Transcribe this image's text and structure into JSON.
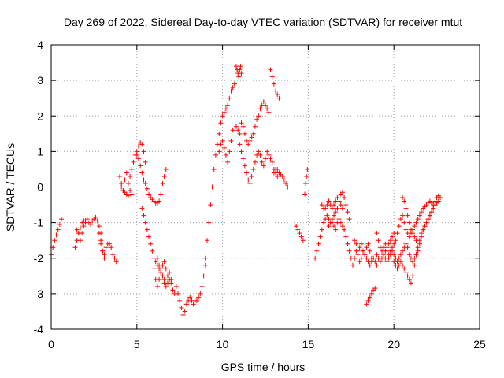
{
  "chart_data": {
    "type": "scatter",
    "title": "Day 269 of 2022, Sidereal Day-to-day VTEC variation (SDTVAR) for receiver mtut",
    "xlabel": "GPS time / hours",
    "ylabel": "SDTVAR / TECUs",
    "xlim": [
      0,
      25
    ],
    "ylim": [
      -4,
      4
    ],
    "xticks": [
      0,
      5,
      10,
      15,
      20,
      25
    ],
    "yticks": [
      -4,
      -3,
      -2,
      -1,
      0,
      1,
      2,
      3,
      4
    ],
    "xtick_labels": [
      "0",
      "5",
      "10",
      "15",
      "20",
      "25"
    ],
    "ytick_labels": [
      "-4",
      "-3",
      "-2",
      "-1",
      "0",
      "1",
      "2",
      "3",
      "4"
    ],
    "grid": true,
    "marker": "+",
    "marker_color": "#ff0000",
    "series": [
      {
        "name": "seg1",
        "x": [
          0.0,
          0.1,
          0.2,
          0.3,
          0.4,
          0.5,
          0.6
        ],
        "y": [
          -1.9,
          -1.7,
          -1.5,
          -1.35,
          -1.2,
          -1.05,
          -0.9
        ]
      },
      {
        "name": "seg2",
        "x": [
          1.4,
          1.5,
          1.6,
          1.7,
          1.8,
          1.9,
          2.0,
          2.1,
          2.2,
          2.3,
          2.4,
          2.5,
          2.6,
          2.7,
          2.8,
          2.9
        ],
        "y": [
          -1.7,
          -1.5,
          -1.3,
          -1.15,
          -1.0,
          -0.95,
          -0.95,
          -0.9,
          -1.0,
          -1.05,
          -0.95,
          -0.9,
          -0.85,
          -0.95,
          -1.1,
          -1.3
        ]
      },
      {
        "name": "seg3",
        "x": [
          1.5,
          1.6,
          1.7,
          1.8,
          1.9,
          2.0
        ],
        "y": [
          -1.2,
          -1.3,
          -1.5,
          -1.3,
          -1.1,
          -1.0
        ]
      },
      {
        "name": "seg4",
        "x": [
          2.9,
          3.0,
          3.1,
          3.2,
          3.3,
          3.4,
          3.5,
          3.6,
          3.7,
          3.8
        ],
        "y": [
          -1.6,
          -1.8,
          -1.9,
          -1.7,
          -1.6,
          -1.6,
          -1.7,
          -1.9,
          -2.0,
          -2.1
        ]
      },
      {
        "name": "seg5",
        "x": [
          2.8,
          2.9,
          3.0,
          3.1
        ],
        "y": [
          -1.3,
          -1.5,
          -1.8,
          -2.0
        ]
      },
      {
        "name": "seg6",
        "x": [
          4.0,
          4.1,
          4.2,
          4.3,
          4.4,
          4.5,
          4.6,
          4.7
        ],
        "y": [
          0.3,
          0.1,
          -0.1,
          0.2,
          0.4,
          0.1,
          -0.1,
          -0.2
        ]
      },
      {
        "name": "seg7",
        "x": [
          4.1,
          4.2,
          4.3,
          4.4,
          4.5
        ],
        "y": [
          0.0,
          -0.1,
          -0.15,
          -0.2,
          -0.25
        ]
      },
      {
        "name": "seg8",
        "x": [
          4.6,
          4.7,
          4.8,
          4.9,
          5.0,
          5.1,
          5.2,
          5.3,
          5.4,
          5.5
        ],
        "y": [
          0.3,
          0.5,
          0.7,
          0.9,
          1.0,
          1.15,
          1.25,
          1.2,
          1.0,
          0.7
        ]
      },
      {
        "name": "seg9",
        "x": [
          5.0,
          5.1,
          5.2,
          5.3,
          5.4,
          5.5,
          5.6,
          5.7,
          5.8,
          5.9,
          6.0,
          6.1,
          6.2,
          6.3,
          6.4,
          6.5,
          6.6,
          6.7
        ],
        "y": [
          0.9,
          0.8,
          0.6,
          0.4,
          0.2,
          0.1,
          -0.05,
          -0.2,
          -0.3,
          -0.35,
          -0.4,
          -0.45,
          -0.45,
          -0.4,
          -0.2,
          0.1,
          0.3,
          0.5
        ]
      },
      {
        "name": "seg10",
        "x": [
          5.3,
          5.4,
          5.5,
          5.6,
          5.7,
          5.8,
          5.9,
          6.0,
          6.1,
          6.2,
          6.3,
          6.4,
          6.5,
          6.6
        ],
        "y": [
          -0.6,
          -0.8,
          -1.0,
          -1.2,
          -1.4,
          -1.6,
          -1.8,
          -2.0,
          -2.1,
          -2.2,
          -2.3,
          -2.4,
          -2.5,
          -2.6
        ]
      },
      {
        "name": "seg11",
        "x": [
          6.0,
          6.1,
          6.2,
          6.3,
          6.4,
          6.5,
          6.6,
          6.7,
          6.8,
          6.9,
          7.0,
          7.1,
          7.2,
          7.3,
          7.4,
          7.5,
          7.6,
          7.7,
          7.8,
          7.9,
          8.0,
          8.1,
          8.2,
          8.3,
          8.4,
          8.5,
          8.6,
          8.7,
          8.8,
          8.9,
          9.0
        ],
        "y": [
          -2.3,
          -2.6,
          -2.8,
          -2.6,
          -2.3,
          -2.5,
          -2.7,
          -2.8,
          -2.7,
          -2.6,
          -2.7,
          -2.9,
          -3.0,
          -2.8,
          -3.0,
          -3.2,
          -3.4,
          -3.6,
          -3.5,
          -3.3,
          -3.2,
          -3.1,
          -3.2,
          -3.3,
          -3.2,
          -3.2,
          -3.1,
          -3.0,
          -2.8,
          -2.5,
          -2.2
        ]
      },
      {
        "name": "seg12",
        "x": [
          6.2,
          6.3,
          6.4,
          6.5,
          6.6,
          6.7,
          6.8,
          6.9,
          7.0
        ],
        "y": [
          -2.0,
          -2.2,
          -2.4,
          -2.2,
          -2.1,
          -2.3,
          -2.5,
          -2.4,
          -2.6
        ]
      },
      {
        "name": "seg13",
        "x": [
          9.0,
          9.1,
          9.2,
          9.3,
          9.4,
          9.5,
          9.6,
          9.7,
          9.8,
          9.9,
          10.0,
          10.1,
          10.2,
          10.3,
          10.4,
          10.5,
          10.6,
          10.7
        ],
        "y": [
          -2.0,
          -1.5,
          -1.0,
          -0.5,
          0.0,
          0.5,
          0.9,
          1.2,
          1.5,
          1.8,
          2.0,
          2.1,
          2.2,
          2.3,
          2.5,
          2.7,
          2.8,
          2.9
        ]
      },
      {
        "name": "seg14",
        "x": [
          9.8,
          9.9,
          10.0,
          10.1,
          10.2,
          10.3,
          10.4,
          10.5,
          10.6
        ],
        "y": [
          1.0,
          1.2,
          1.3,
          1.1,
          0.9,
          0.7,
          1.0,
          1.3,
          1.6
        ]
      },
      {
        "name": "seg15",
        "x": [
          10.8,
          10.85,
          10.9,
          10.95,
          11.0,
          11.05,
          11.1
        ],
        "y": [
          3.4,
          3.3,
          3.2,
          3.1,
          3.3,
          3.4,
          3.2
        ]
      },
      {
        "name": "seg16",
        "x": [
          10.8,
          10.9,
          11.0,
          11.1,
          11.2,
          11.3,
          11.4,
          11.5,
          11.6,
          11.7,
          11.8,
          11.9,
          12.0,
          12.1,
          12.2,
          12.3,
          12.4,
          12.5,
          12.6,
          12.7
        ],
        "y": [
          1.7,
          1.6,
          1.5,
          1.8,
          1.7,
          1.5,
          1.3,
          1.2,
          1.3,
          1.4,
          1.5,
          1.7,
          1.9,
          2.0,
          2.2,
          2.3,
          2.4,
          2.3,
          2.2,
          2.1
        ]
      },
      {
        "name": "seg17",
        "x": [
          11.0,
          11.1,
          11.2,
          11.3,
          11.4,
          11.5,
          11.6,
          11.7,
          11.8,
          11.9,
          12.0,
          12.1,
          12.2,
          12.3,
          12.4
        ],
        "y": [
          1.2,
          1.0,
          0.8,
          0.6,
          0.4,
          0.2,
          0.1,
          0.3,
          0.5,
          0.7,
          0.9,
          1.0,
          0.9,
          0.7,
          0.6
        ]
      },
      {
        "name": "seg18",
        "x": [
          12.5,
          12.6,
          12.7,
          12.8,
          12.9,
          13.0,
          13.1,
          13.2
        ],
        "y": [
          0.8,
          1.0,
          0.9,
          0.8,
          0.7,
          0.5,
          0.4,
          0.3
        ]
      },
      {
        "name": "seg19",
        "x": [
          12.8,
          12.9,
          13.0,
          13.1,
          13.2,
          13.3
        ],
        "y": [
          3.3,
          3.1,
          2.9,
          2.7,
          2.6,
          2.5
        ]
      },
      {
        "name": "seg20",
        "x": [
          13.0,
          13.1,
          13.2,
          13.3,
          13.4,
          13.5,
          13.6,
          13.7,
          13.8
        ],
        "y": [
          0.4,
          0.5,
          0.5,
          0.4,
          0.35,
          0.3,
          0.2,
          0.1,
          0.0
        ]
      },
      {
        "name": "seg21",
        "x": [
          14.3,
          14.4,
          14.5,
          14.6,
          14.7
        ],
        "y": [
          -1.1,
          -1.2,
          -1.3,
          -1.4,
          -1.5
        ]
      },
      {
        "name": "seg22",
        "x": [
          14.8,
          14.85,
          14.9,
          14.95
        ],
        "y": [
          -0.2,
          0.1,
          0.3,
          0.5
        ]
      },
      {
        "name": "seg23",
        "x": [
          15.4,
          15.5,
          15.6,
          15.7,
          15.8,
          15.9,
          16.0,
          16.1,
          16.2,
          16.3,
          16.4,
          16.5,
          16.6,
          16.7,
          16.8,
          16.9,
          17.0,
          17.1,
          17.2,
          17.3,
          17.4
        ],
        "y": [
          -2.0,
          -1.8,
          -1.6,
          -1.4,
          -1.2,
          -1.0,
          -0.9,
          -0.8,
          -0.9,
          -1.0,
          -0.9,
          -0.8,
          -0.7,
          -0.6,
          -0.4,
          -0.2,
          -0.15,
          -0.3,
          -0.5,
          -0.7,
          -0.9
        ]
      },
      {
        "name": "seg24",
        "x": [
          15.8,
          15.9,
          16.0,
          16.1,
          16.2,
          16.3,
          16.4,
          16.5,
          16.6,
          16.7,
          16.8,
          16.9,
          17.0
        ],
        "y": [
          -0.5,
          -0.6,
          -0.6,
          -0.5,
          -0.4,
          -0.5,
          -0.6,
          -0.5,
          -0.4,
          -0.3,
          -0.4,
          -0.5,
          -0.6
        ]
      },
      {
        "name": "seg25",
        "x": [
          16.2,
          16.3,
          16.4,
          16.5,
          16.6,
          16.7,
          16.8,
          16.9,
          17.0,
          17.1,
          17.2,
          17.3,
          17.4,
          17.5,
          17.6,
          17.7,
          17.8,
          17.9,
          18.0,
          18.1,
          18.2,
          18.3,
          18.4,
          18.5,
          18.6,
          18.7,
          18.8,
          18.9,
          19.0
        ],
        "y": [
          -1.1,
          -1.0,
          -1.0,
          -1.1,
          -1.2,
          -1.0,
          -0.9,
          -1.0,
          -1.1,
          -1.2,
          -1.4,
          -1.6,
          -1.8,
          -2.0,
          -2.2,
          -2.0,
          -1.8,
          -1.9,
          -2.1,
          -2.0,
          -1.8,
          -1.9,
          -2.0,
          -2.1,
          -2.2,
          -2.1,
          -2.0,
          -2.1,
          -2.2
        ]
      },
      {
        "name": "seg26",
        "x": [
          17.7,
          17.8,
          17.9,
          18.0,
          18.1,
          18.2,
          18.3,
          18.4,
          18.5,
          18.6,
          18.7
        ],
        "y": [
          -1.5,
          -1.6,
          -1.8,
          -1.7,
          -1.6,
          -1.8,
          -1.9,
          -1.7,
          -1.6,
          -1.8,
          -2.0
        ]
      },
      {
        "name": "seg27",
        "x": [
          18.4,
          18.5,
          18.6,
          18.7,
          18.8,
          18.9
        ],
        "y": [
          -3.3,
          -3.2,
          -3.1,
          -3.0,
          -2.9,
          -2.85
        ]
      },
      {
        "name": "seg28",
        "x": [
          19.0,
          19.1,
          19.2,
          19.3,
          19.4,
          19.5,
          19.6,
          19.7,
          19.8,
          19.9,
          20.0,
          20.1,
          20.2,
          20.3,
          20.4,
          20.5,
          20.6,
          20.7,
          20.8,
          20.9,
          21.0,
          21.1,
          21.2,
          21.3,
          21.4,
          21.5,
          21.6,
          21.7,
          21.8,
          21.9,
          22.0,
          22.1,
          22.2,
          22.3,
          22.4,
          22.5,
          22.6,
          22.7
        ],
        "y": [
          -1.3,
          -1.5,
          -1.7,
          -1.8,
          -1.7,
          -1.6,
          -1.8,
          -1.9,
          -1.8,
          -1.7,
          -1.6,
          -1.5,
          -1.3,
          -1.1,
          -0.9,
          -0.8,
          -1.0,
          -1.2,
          -1.3,
          -1.4,
          -1.3,
          -1.2,
          -1.1,
          -1.0,
          -0.9,
          -0.8,
          -0.7,
          -0.6,
          -0.55,
          -0.5,
          -0.45,
          -0.4,
          -0.45,
          -0.5,
          -0.4,
          -0.3,
          -0.25,
          -0.3
        ]
      },
      {
        "name": "seg29",
        "x": [
          19.5,
          19.6,
          19.7,
          19.8,
          19.9,
          20.0,
          20.1,
          20.2,
          20.3,
          20.4,
          20.5,
          20.6,
          20.7,
          20.8,
          20.9,
          21.0,
          21.1,
          21.2,
          21.3,
          21.4,
          21.5,
          21.6,
          21.7,
          21.8,
          21.9,
          22.0,
          22.1,
          22.2,
          22.3,
          22.4,
          22.5,
          22.6
        ],
        "y": [
          -2.0,
          -2.1,
          -2.0,
          -1.9,
          -1.8,
          -1.9,
          -2.0,
          -2.1,
          -2.0,
          -1.9,
          -1.8,
          -1.7,
          -1.6,
          -1.7,
          -1.9,
          -2.0,
          -2.1,
          -2.0,
          -1.9,
          -1.8,
          -1.6,
          -1.4,
          -1.2,
          -1.1,
          -1.0,
          -0.9,
          -0.8,
          -0.7,
          -0.6,
          -0.5,
          -0.45,
          -0.4
        ]
      },
      {
        "name": "seg30",
        "x": [
          20.0,
          20.1,
          20.2,
          20.3,
          20.4,
          20.5,
          20.6,
          20.7,
          20.8,
          20.9,
          21.0,
          21.1,
          21.2,
          21.3,
          21.4,
          21.5,
          21.6,
          21.7,
          21.8,
          21.9,
          22.0,
          22.1,
          22.2,
          22.3,
          22.4
        ],
        "y": [
          -2.1,
          -2.2,
          -2.3,
          -2.2,
          -2.1,
          -2.2,
          -2.3,
          -2.4,
          -2.5,
          -2.6,
          -2.7,
          -2.5,
          -2.2,
          -1.9,
          -1.7,
          -1.5,
          -1.3,
          -1.2,
          -1.1,
          -1.0,
          -0.9,
          -0.8,
          -0.7,
          -0.6,
          -0.5
        ]
      },
      {
        "name": "seg31",
        "x": [
          20.5,
          20.6,
          20.7,
          20.8,
          20.9,
          21.0,
          21.1,
          21.2,
          21.3
        ],
        "y": [
          -0.3,
          -0.4,
          -0.6,
          -0.8,
          -1.0,
          -1.2,
          -1.3,
          -1.4,
          -1.5
        ]
      },
      {
        "name": "seg32",
        "x": [
          19.0,
          19.1,
          19.2,
          19.3,
          19.4,
          19.5,
          19.6,
          19.7,
          19.8,
          19.9,
          20.0
        ],
        "y": [
          -1.9,
          -2.0,
          -2.1,
          -2.0,
          -1.9,
          -1.8,
          -1.7,
          -1.6,
          -1.5,
          -1.4,
          -1.3
        ]
      }
    ]
  }
}
